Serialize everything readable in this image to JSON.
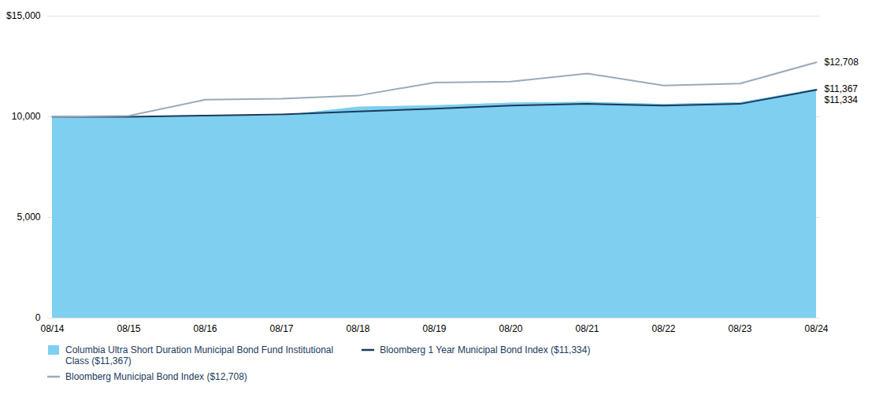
{
  "chart_data": {
    "type": "line",
    "categories": [
      "08/14",
      "08/15",
      "08/16",
      "08/17",
      "08/18",
      "08/19",
      "08/20",
      "08/21",
      "08/22",
      "08/23",
      "08/24"
    ],
    "series": [
      {
        "name": "Columbia Ultra Short Duration Municipal Bond Fund Institutional\nClass ($11,367)",
        "type": "area",
        "color": "#7ECFF0",
        "values": [
          10000,
          10000,
          10020,
          10050,
          10480,
          10550,
          10680,
          10720,
          10620,
          10700,
          11367
        ]
      },
      {
        "name": "Bloomberg 1 Year Municipal Bond Index ($11,334)",
        "type": "line",
        "color": "#1B3A5C",
        "values": [
          10000,
          10000,
          10060,
          10120,
          10260,
          10400,
          10560,
          10640,
          10560,
          10640,
          11334
        ]
      },
      {
        "name": "Bloomberg Municipal Bond Index ($12,708)",
        "type": "line",
        "color": "#9BAAB8",
        "values": [
          10000,
          10050,
          10850,
          10900,
          11050,
          11700,
          11750,
          12150,
          11550,
          11650,
          12708
        ]
      }
    ],
    "ylim": [
      0,
      15000
    ],
    "yticks": [
      0,
      {
        "value": 5000,
        "label": "5,000"
      },
      {
        "value": 10000,
        "label": "10,000"
      },
      {
        "value": 15000,
        "label": "$15,000"
      }
    ],
    "grid": true,
    "legend": "bottom",
    "annotations": [
      {
        "text": "$12,708",
        "x": "08/24",
        "y": 12708
      },
      {
        "text": "$11,367",
        "x": "08/24",
        "y": 11367
      },
      {
        "text": "$11,334",
        "x": "08/24",
        "y": 11334
      }
    ]
  }
}
